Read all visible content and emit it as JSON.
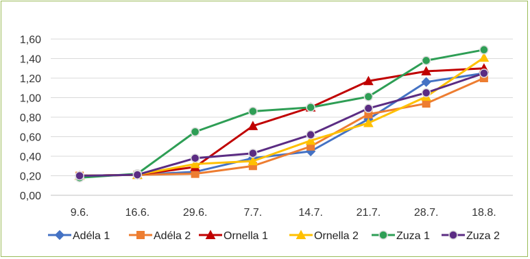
{
  "chart_data": {
    "type": "line",
    "categories": [
      "9.6.",
      "16.6.",
      "29.6.",
      "7.7.",
      "14.7.",
      "21.7.",
      "28.7.",
      "18.8."
    ],
    "ylim": [
      0,
      1.6
    ],
    "yticks": [
      "0,00",
      "0,20",
      "0,40",
      "0,60",
      "0,80",
      "1,00",
      "1,20",
      "1,40",
      "1,60"
    ],
    "grid": true,
    "legend_position": "bottom",
    "series": [
      {
        "name": "Adéla 1",
        "color": "#4472c4",
        "marker": "diamond",
        "values": [
          0.2,
          0.21,
          0.24,
          0.38,
          0.45,
          0.78,
          1.16,
          1.25
        ]
      },
      {
        "name": "Adéla 2",
        "color": "#ed7d31",
        "marker": "square",
        "values": [
          0.2,
          0.21,
          0.22,
          0.3,
          0.5,
          0.83,
          0.94,
          1.2
        ]
      },
      {
        "name": "Ornella 1",
        "color": "#c00000",
        "marker": "triangle",
        "values": [
          0.2,
          0.21,
          0.29,
          0.71,
          0.9,
          1.17,
          1.27,
          1.3
        ]
      },
      {
        "name": "Ornella 2",
        "color": "#ffc000",
        "marker": "triangle",
        "values": [
          0.2,
          0.21,
          0.32,
          0.35,
          0.56,
          0.74,
          1.01,
          1.41
        ]
      },
      {
        "name": "Zuza 1",
        "color": "#2e9e55",
        "marker": "circle",
        "values": [
          0.18,
          0.22,
          0.65,
          0.86,
          0.9,
          1.01,
          1.38,
          1.49
        ]
      },
      {
        "name": "Zuza 2",
        "color": "#5b2c83",
        "marker": "circle",
        "values": [
          0.2,
          0.21,
          0.38,
          0.43,
          0.62,
          0.89,
          1.05,
          1.25
        ]
      }
    ]
  }
}
